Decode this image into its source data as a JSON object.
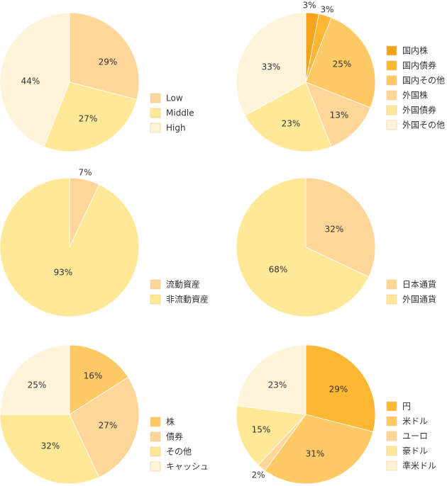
{
  "chart_data": [
    {
      "type": "pie",
      "categories": [
        "Low",
        "Middle",
        "High"
      ],
      "values": [
        29,
        27,
        44
      ],
      "labels": [
        "29%",
        "27%",
        "44%"
      ],
      "colors": [
        "#FFD699",
        "#FFE999",
        "#FFF4D9"
      ],
      "legend_position": "right"
    },
    {
      "type": "pie",
      "categories": [
        "国内株",
        "国内債券",
        "国内その他",
        "外国株",
        "外国債券",
        "外国その他"
      ],
      "values": [
        3,
        3,
        25,
        13,
        23,
        33
      ],
      "labels": [
        "3%",
        "3%",
        "25%",
        "13%",
        "23%",
        "33%"
      ],
      "colors": [
        "#F5A31A",
        "#FFB733",
        "#FFC966",
        "#FFD699",
        "#FFE999",
        "#FFF4D9"
      ],
      "legend_position": "right"
    },
    {
      "type": "pie",
      "categories": [
        "流動資産",
        "非流動資産"
      ],
      "values": [
        7,
        93
      ],
      "labels": [
        "7%",
        "93%"
      ],
      "colors": [
        "#FFD699",
        "#FFE999"
      ],
      "legend_position": "right"
    },
    {
      "type": "pie",
      "categories": [
        "日本通貨",
        "外国通貨"
      ],
      "values": [
        32,
        68
      ],
      "labels": [
        "32%",
        "68%"
      ],
      "colors": [
        "#FFD699",
        "#FFE999"
      ],
      "legend_position": "right"
    },
    {
      "type": "pie",
      "categories": [
        "株",
        "債券",
        "その他",
        "キャッシュ"
      ],
      "values": [
        16,
        27,
        32,
        25
      ],
      "labels": [
        "16%",
        "27%",
        "32%",
        "25%"
      ],
      "colors": [
        "#FFC966",
        "#FFD699",
        "#FFE999",
        "#FFF4D9"
      ],
      "legend_position": "right"
    },
    {
      "type": "pie",
      "categories": [
        "円",
        "米ドル",
        "ユーロ",
        "豪ドル",
        "準米ドル"
      ],
      "values": [
        29,
        31,
        2,
        15,
        23
      ],
      "labels": [
        "29%",
        "31%",
        "2%",
        "15%",
        "23%"
      ],
      "colors": [
        "#FFB733",
        "#FFC966",
        "#FFD699",
        "#FFE999",
        "#FFF4D9"
      ],
      "legend_position": "right"
    }
  ]
}
